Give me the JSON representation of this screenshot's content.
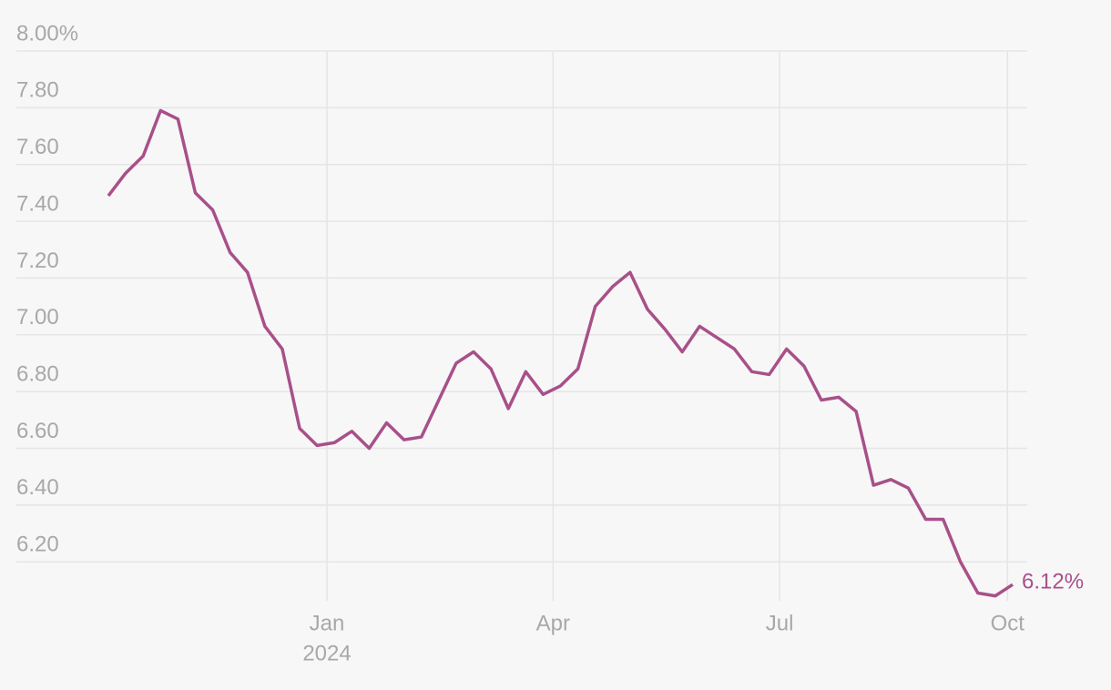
{
  "chart_data": {
    "type": "line",
    "series": [
      {
        "color": "#a8508a",
        "values": [
          7.49,
          7.57,
          7.63,
          7.79,
          7.76,
          7.5,
          7.44,
          7.29,
          7.22,
          7.03,
          6.95,
          6.67,
          6.61,
          6.62,
          6.66,
          6.6,
          6.69,
          6.63,
          6.64,
          6.77,
          6.9,
          6.94,
          6.88,
          6.74,
          6.87,
          6.79,
          6.82,
          6.88,
          7.1,
          7.17,
          7.22,
          7.09,
          7.02,
          6.94,
          7.03,
          6.99,
          6.95,
          6.87,
          6.86,
          6.95,
          6.89,
          6.77,
          6.78,
          6.73,
          6.47,
          6.49,
          6.46,
          6.35,
          6.35,
          6.2,
          6.09,
          6.08,
          6.12
        ],
        "value_labels": [
          null,
          null,
          null,
          null,
          null,
          null,
          null,
          null,
          null,
          null,
          null,
          null,
          null,
          null,
          null,
          null,
          null,
          null,
          null,
          null,
          null,
          null,
          null,
          null,
          null,
          null,
          null,
          null,
          null,
          null,
          null,
          null,
          null,
          null,
          null,
          null,
          null,
          null,
          null,
          null,
          null,
          null,
          null,
          null,
          null,
          null,
          null,
          null,
          null,
          null,
          null,
          null,
          "6.12%"
        ]
      }
    ],
    "xlim": [
      0,
      52
    ],
    "xticks": [
      {
        "value": 12.57,
        "label": "Jan",
        "sublabel": "2024"
      },
      {
        "value": 25.57,
        "label": "Apr"
      },
      {
        "value": 38.6,
        "label": "Jul"
      },
      {
        "value": 51.7,
        "label": "Oct"
      }
    ],
    "ylim": [
      6.05,
      8.0
    ],
    "yticks": [
      {
        "value": 8.0,
        "label": "8.00%"
      },
      {
        "value": 7.8,
        "label": "7.80"
      },
      {
        "value": 7.6,
        "label": "7.60"
      },
      {
        "value": 7.4,
        "label": "7.40"
      },
      {
        "value": 7.2,
        "label": "7.20"
      },
      {
        "value": 7.0,
        "label": "7.00"
      },
      {
        "value": 6.8,
        "label": "6.80"
      },
      {
        "value": 6.6,
        "label": "6.60"
      },
      {
        "value": 6.4,
        "label": "6.40"
      },
      {
        "value": 6.2,
        "label": "6.20"
      }
    ],
    "grid": true
  }
}
